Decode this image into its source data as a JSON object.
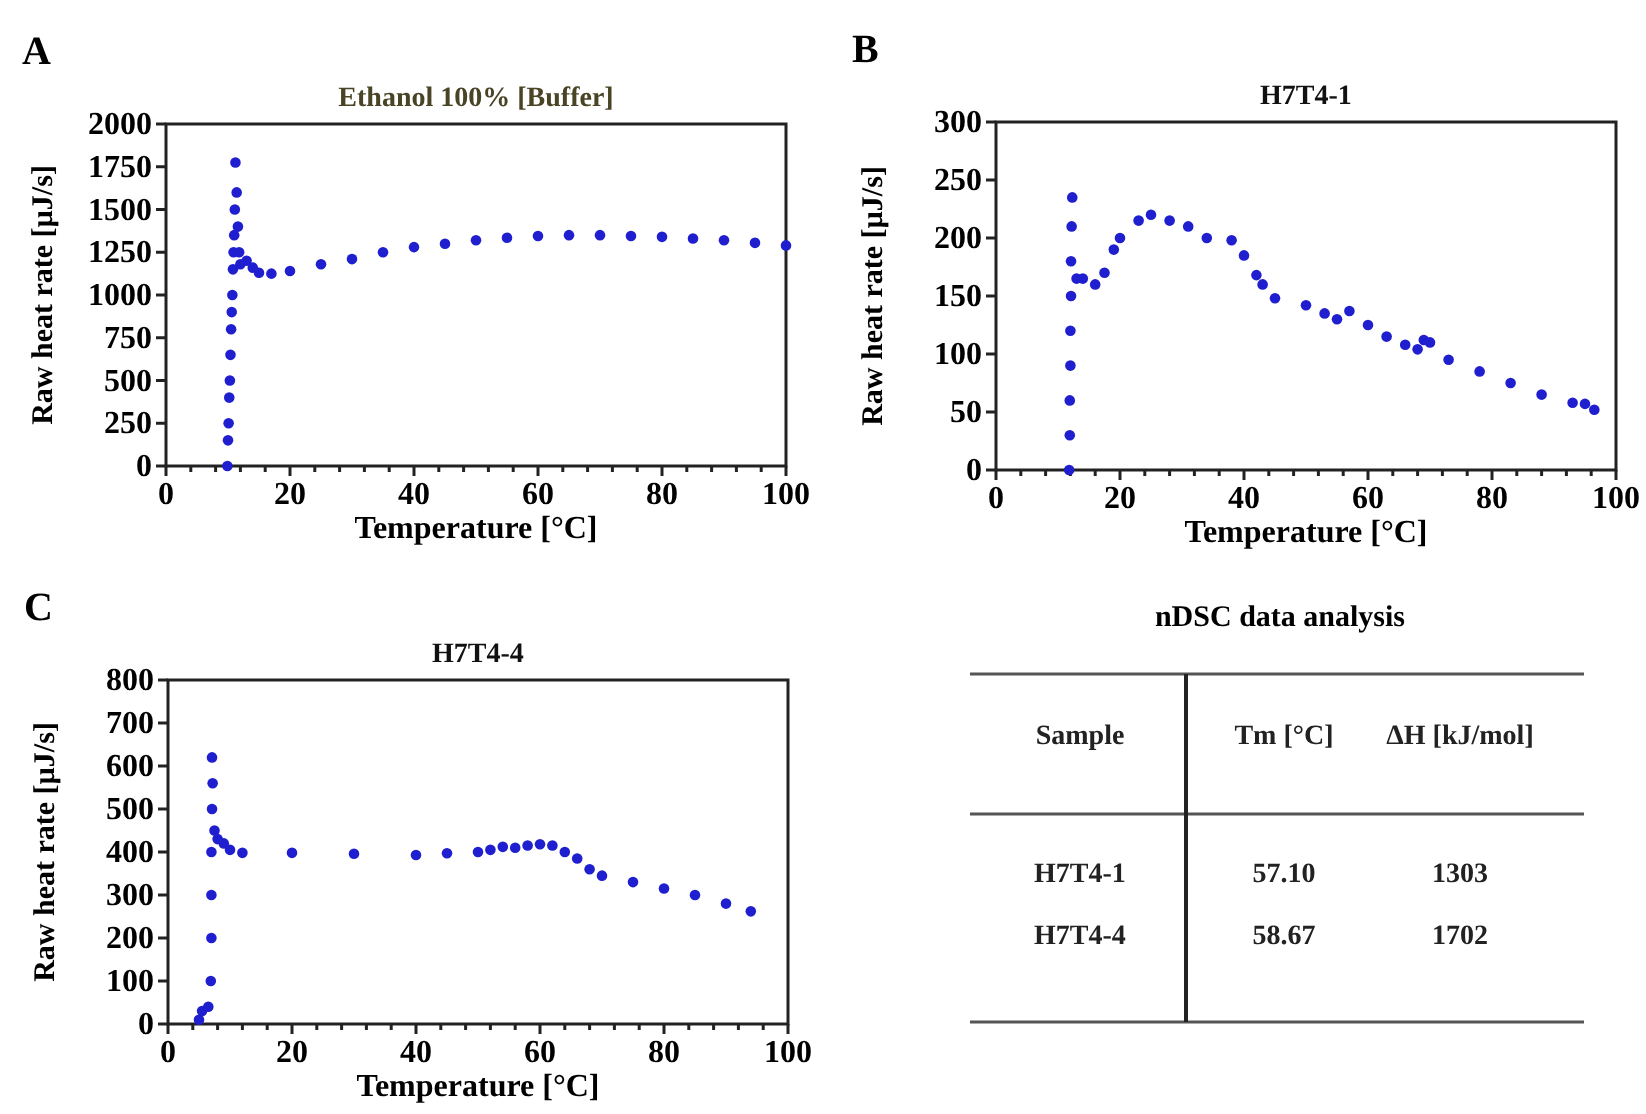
{
  "chart_data": [
    {
      "type": "scatter",
      "title": "Ethanol 100% [Buffer]",
      "xlabel": "Temperature [°C]",
      "ylabel": "Raw heat rate [µJ/s]",
      "annotations": [
        "A"
      ],
      "marker": "circle",
      "grid": false,
      "xlim": [
        0,
        100
      ],
      "ylim": [
        0,
        2000
      ],
      "xticks": [
        0,
        {
          "value": 4,
          "label": null
        },
        {
          "value": 8,
          "label": null
        },
        {
          "value": 12,
          "label": null
        },
        {
          "value": 16,
          "label": null
        },
        20,
        {
          "value": 24,
          "label": null
        },
        {
          "value": 28,
          "label": null
        },
        {
          "value": 32,
          "label": null
        },
        {
          "value": 36,
          "label": null
        },
        40,
        {
          "value": 44,
          "label": null
        },
        {
          "value": 48,
          "label": null
        },
        {
          "value": 52,
          "label": null
        },
        {
          "value": 56,
          "label": null
        },
        60,
        {
          "value": 64,
          "label": null
        },
        {
          "value": 68,
          "label": null
        },
        {
          "value": 72,
          "label": null
        },
        {
          "value": 76,
          "label": null
        },
        80,
        {
          "value": 84,
          "label": null
        },
        {
          "value": 88,
          "label": null
        },
        {
          "value": 92,
          "label": null
        },
        {
          "value": 96,
          "label": null
        },
        100
      ],
      "yticks": [
        0,
        250,
        500,
        750,
        1000,
        1250,
        1500,
        1750,
        2000
      ],
      "series": [
        {
          "color": "#1f1fd0",
          "x": [
            9.9,
            10.0,
            10.1,
            10.2,
            10.3,
            10.4,
            10.5,
            10.6,
            10.7,
            10.8,
            10.9,
            11.0,
            11.1,
            11.2,
            11.4,
            11.6,
            11.8,
            12,
            13,
            14,
            15,
            17,
            20,
            25,
            30,
            35,
            40,
            45,
            50,
            55,
            60,
            65,
            70,
            75,
            80,
            85,
            90,
            95,
            100
          ],
          "values": [
            0,
            150,
            250,
            400,
            500,
            650,
            800,
            900,
            1000,
            1150,
            1250,
            1350,
            1500,
            1775,
            1600,
            1400,
            1250,
            1180,
            1200,
            1160,
            1130,
            1125,
            1140,
            1180,
            1210,
            1250,
            1280,
            1300,
            1320,
            1335,
            1345,
            1350,
            1350,
            1345,
            1340,
            1330,
            1320,
            1305,
            1290
          ]
        }
      ]
    },
    {
      "type": "scatter",
      "title": "H7T4-1",
      "xlabel": "Temperature [°C]",
      "ylabel": "Raw heat rate [µJ/s]",
      "annotations": [
        "B"
      ],
      "marker": "circle",
      "grid": false,
      "xlim": [
        0,
        100
      ],
      "ylim": [
        0,
        300
      ],
      "xticks": [
        0,
        {
          "value": 4,
          "label": null
        },
        {
          "value": 8,
          "label": null
        },
        {
          "value": 12,
          "label": null
        },
        {
          "value": 16,
          "label": null
        },
        20,
        {
          "value": 24,
          "label": null
        },
        {
          "value": 28,
          "label": null
        },
        {
          "value": 32,
          "label": null
        },
        {
          "value": 36,
          "label": null
        },
        40,
        {
          "value": 44,
          "label": null
        },
        {
          "value": 48,
          "label": null
        },
        {
          "value": 52,
          "label": null
        },
        {
          "value": 56,
          "label": null
        },
        60,
        {
          "value": 64,
          "label": null
        },
        {
          "value": 68,
          "label": null
        },
        {
          "value": 72,
          "label": null
        },
        {
          "value": 76,
          "label": null
        },
        80,
        {
          "value": 84,
          "label": null
        },
        {
          "value": 88,
          "label": null
        },
        {
          "value": 92,
          "label": null
        },
        {
          "value": 96,
          "label": null
        },
        100
      ],
      "yticks": [
        0,
        50,
        100,
        150,
        200,
        250,
        300
      ],
      "series": [
        {
          "color": "#1f1fd0",
          "x": [
            11.8,
            11.9,
            11.9,
            12.0,
            12.0,
            12.1,
            12.1,
            12.2,
            12.3,
            13,
            14,
            16,
            17.5,
            19,
            20,
            23,
            25,
            28,
            31,
            34,
            38,
            40,
            42,
            43,
            45,
            50,
            53,
            55,
            57,
            60,
            63,
            66,
            68,
            69,
            70,
            73,
            78,
            83,
            88,
            93,
            95,
            96.5
          ],
          "values": [
            0,
            30,
            60,
            90,
            120,
            150,
            180,
            210,
            235,
            165,
            165,
            160,
            170,
            190,
            200,
            215,
            220,
            215,
            210,
            200,
            198,
            185,
            168,
            160,
            148,
            142,
            135,
            130,
            137,
            125,
            115,
            108,
            104,
            112,
            110,
            95,
            85,
            75,
            65,
            58,
            57,
            52
          ]
        }
      ]
    },
    {
      "type": "scatter",
      "title": "H7T4-4",
      "xlabel": "Temperature [°C]",
      "ylabel": "Raw heat rate [µJ/s]",
      "annotations": [
        "C"
      ],
      "marker": "circle",
      "grid": false,
      "xlim": [
        0,
        100
      ],
      "ylim": [
        0,
        800
      ],
      "xticks": [
        0,
        {
          "value": 4,
          "label": null
        },
        {
          "value": 8,
          "label": null
        },
        {
          "value": 12,
          "label": null
        },
        {
          "value": 16,
          "label": null
        },
        20,
        {
          "value": 24,
          "label": null
        },
        {
          "value": 28,
          "label": null
        },
        {
          "value": 32,
          "label": null
        },
        {
          "value": 36,
          "label": null
        },
        40,
        {
          "value": 44,
          "label": null
        },
        {
          "value": 48,
          "label": null
        },
        {
          "value": 52,
          "label": null
        },
        {
          "value": 56,
          "label": null
        },
        60,
        {
          "value": 64,
          "label": null
        },
        {
          "value": 68,
          "label": null
        },
        {
          "value": 72,
          "label": null
        },
        {
          "value": 76,
          "label": null
        },
        80,
        {
          "value": 84,
          "label": null
        },
        {
          "value": 88,
          "label": null
        },
        {
          "value": 92,
          "label": null
        },
        {
          "value": 96,
          "label": null
        },
        100
      ],
      "yticks": [
        0,
        100,
        200,
        300,
        400,
        500,
        600,
        700,
        800
      ],
      "series": [
        {
          "color": "#1f1fd0",
          "x": [
            5,
            5.5,
            6.5,
            6.9,
            7.0,
            7.0,
            7.0,
            7.1,
            7.1,
            7.2,
            7.5,
            8,
            9,
            10,
            12,
            20,
            30,
            40,
            45,
            50,
            52,
            54,
            56,
            58,
            60,
            62,
            64,
            66,
            68,
            70,
            75,
            80,
            85,
            90,
            94
          ],
          "values": [
            10,
            30,
            40,
            100,
            200,
            300,
            400,
            500,
            620,
            560,
            450,
            430,
            420,
            405,
            398,
            398,
            396,
            393,
            397,
            400,
            405,
            412,
            410,
            415,
            418,
            415,
            400,
            385,
            360,
            345,
            330,
            315,
            300,
            280,
            262
          ]
        }
      ]
    },
    {
      "type": "other",
      "title": "nDSC data analysis",
      "annotations": [
        "Sample",
        "Tm [°C]",
        "ΔH [kJ/mol]",
        "H7T4-1",
        "57.10",
        "1303",
        "H7T4-4",
        "58.67",
        "1702"
      ]
    }
  ]
}
